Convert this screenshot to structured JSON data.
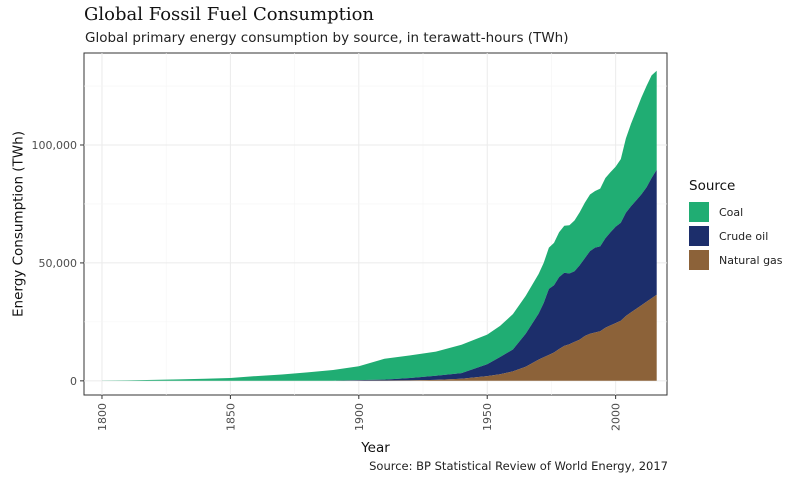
{
  "title": "Global Fossil Fuel Consumption",
  "subtitle": "Global primary energy consumption by source, in terawatt-hours (TWh)",
  "caption": "Source: BP Statistical Review of World Energy, 2017",
  "chart_data": {
    "type": "area",
    "stacked": true,
    "xlabel": "Year",
    "ylabel": "Energy Consumption (TWh)",
    "xlim": [
      1793,
      2020
    ],
    "ylim": [
      -6000,
      139000
    ],
    "x_ticks": [
      1800,
      1850,
      1900,
      1950,
      2000
    ],
    "y_ticks": [
      0,
      50000,
      100000
    ],
    "y_tick_labels": [
      "0",
      "50,000",
      "100,000"
    ],
    "grid": true,
    "legend": {
      "title": "Source",
      "position": "right"
    },
    "x": [
      1800,
      1810,
      1820,
      1830,
      1840,
      1850,
      1860,
      1870,
      1880,
      1890,
      1900,
      1910,
      1920,
      1930,
      1940,
      1950,
      1955,
      1960,
      1965,
      1970,
      1972,
      1974,
      1976,
      1978,
      1980,
      1982,
      1984,
      1986,
      1988,
      1990,
      1992,
      1994,
      1996,
      1998,
      2000,
      2002,
      2004,
      2006,
      2008,
      2010,
      2012,
      2014,
      2016
    ],
    "series": [
      {
        "name": "Coal",
        "color": "#20ad73",
        "values": [
          100,
          200,
          400,
          600,
          900,
          1200,
          2000,
          2700,
          3600,
          4600,
          5900,
          8800,
          9600,
          10200,
          12000,
          12600,
          13200,
          15000,
          16000,
          16800,
          17000,
          17500,
          18000,
          19000,
          20000,
          20500,
          21500,
          22500,
          23500,
          24000,
          24000,
          24500,
          25500,
          25500,
          25500,
          27000,
          31500,
          35000,
          38000,
          41000,
          43000,
          43500,
          42000
        ]
      },
      {
        "name": "Crude oil",
        "color": "#1c2e6b",
        "values": [
          0,
          0,
          0,
          0,
          0,
          0,
          0,
          0,
          0,
          0,
          200,
          400,
          1000,
          1800,
          2400,
          5000,
          7300,
          9300,
          14000,
          19500,
          23000,
          28000,
          28500,
          30500,
          31000,
          30000,
          30000,
          31500,
          33000,
          35000,
          36000,
          36000,
          38000,
          39500,
          40800,
          41500,
          43800,
          45000,
          46000,
          47000,
          48500,
          51000,
          53000
        ]
      },
      {
        "name": "Natural gas",
        "color": "#8c6239",
        "values": [
          0,
          0,
          0,
          0,
          0,
          0,
          0,
          0,
          0,
          0,
          100,
          150,
          200,
          400,
          900,
          2000,
          2800,
          4000,
          6000,
          9000,
          10000,
          11000,
          12000,
          13500,
          14800,
          15500,
          16500,
          17500,
          19000,
          20000,
          20500,
          21000,
          22500,
          23500,
          24500,
          25500,
          27500,
          29000,
          30500,
          32000,
          33500,
          35000,
          36500
        ]
      }
    ]
  }
}
